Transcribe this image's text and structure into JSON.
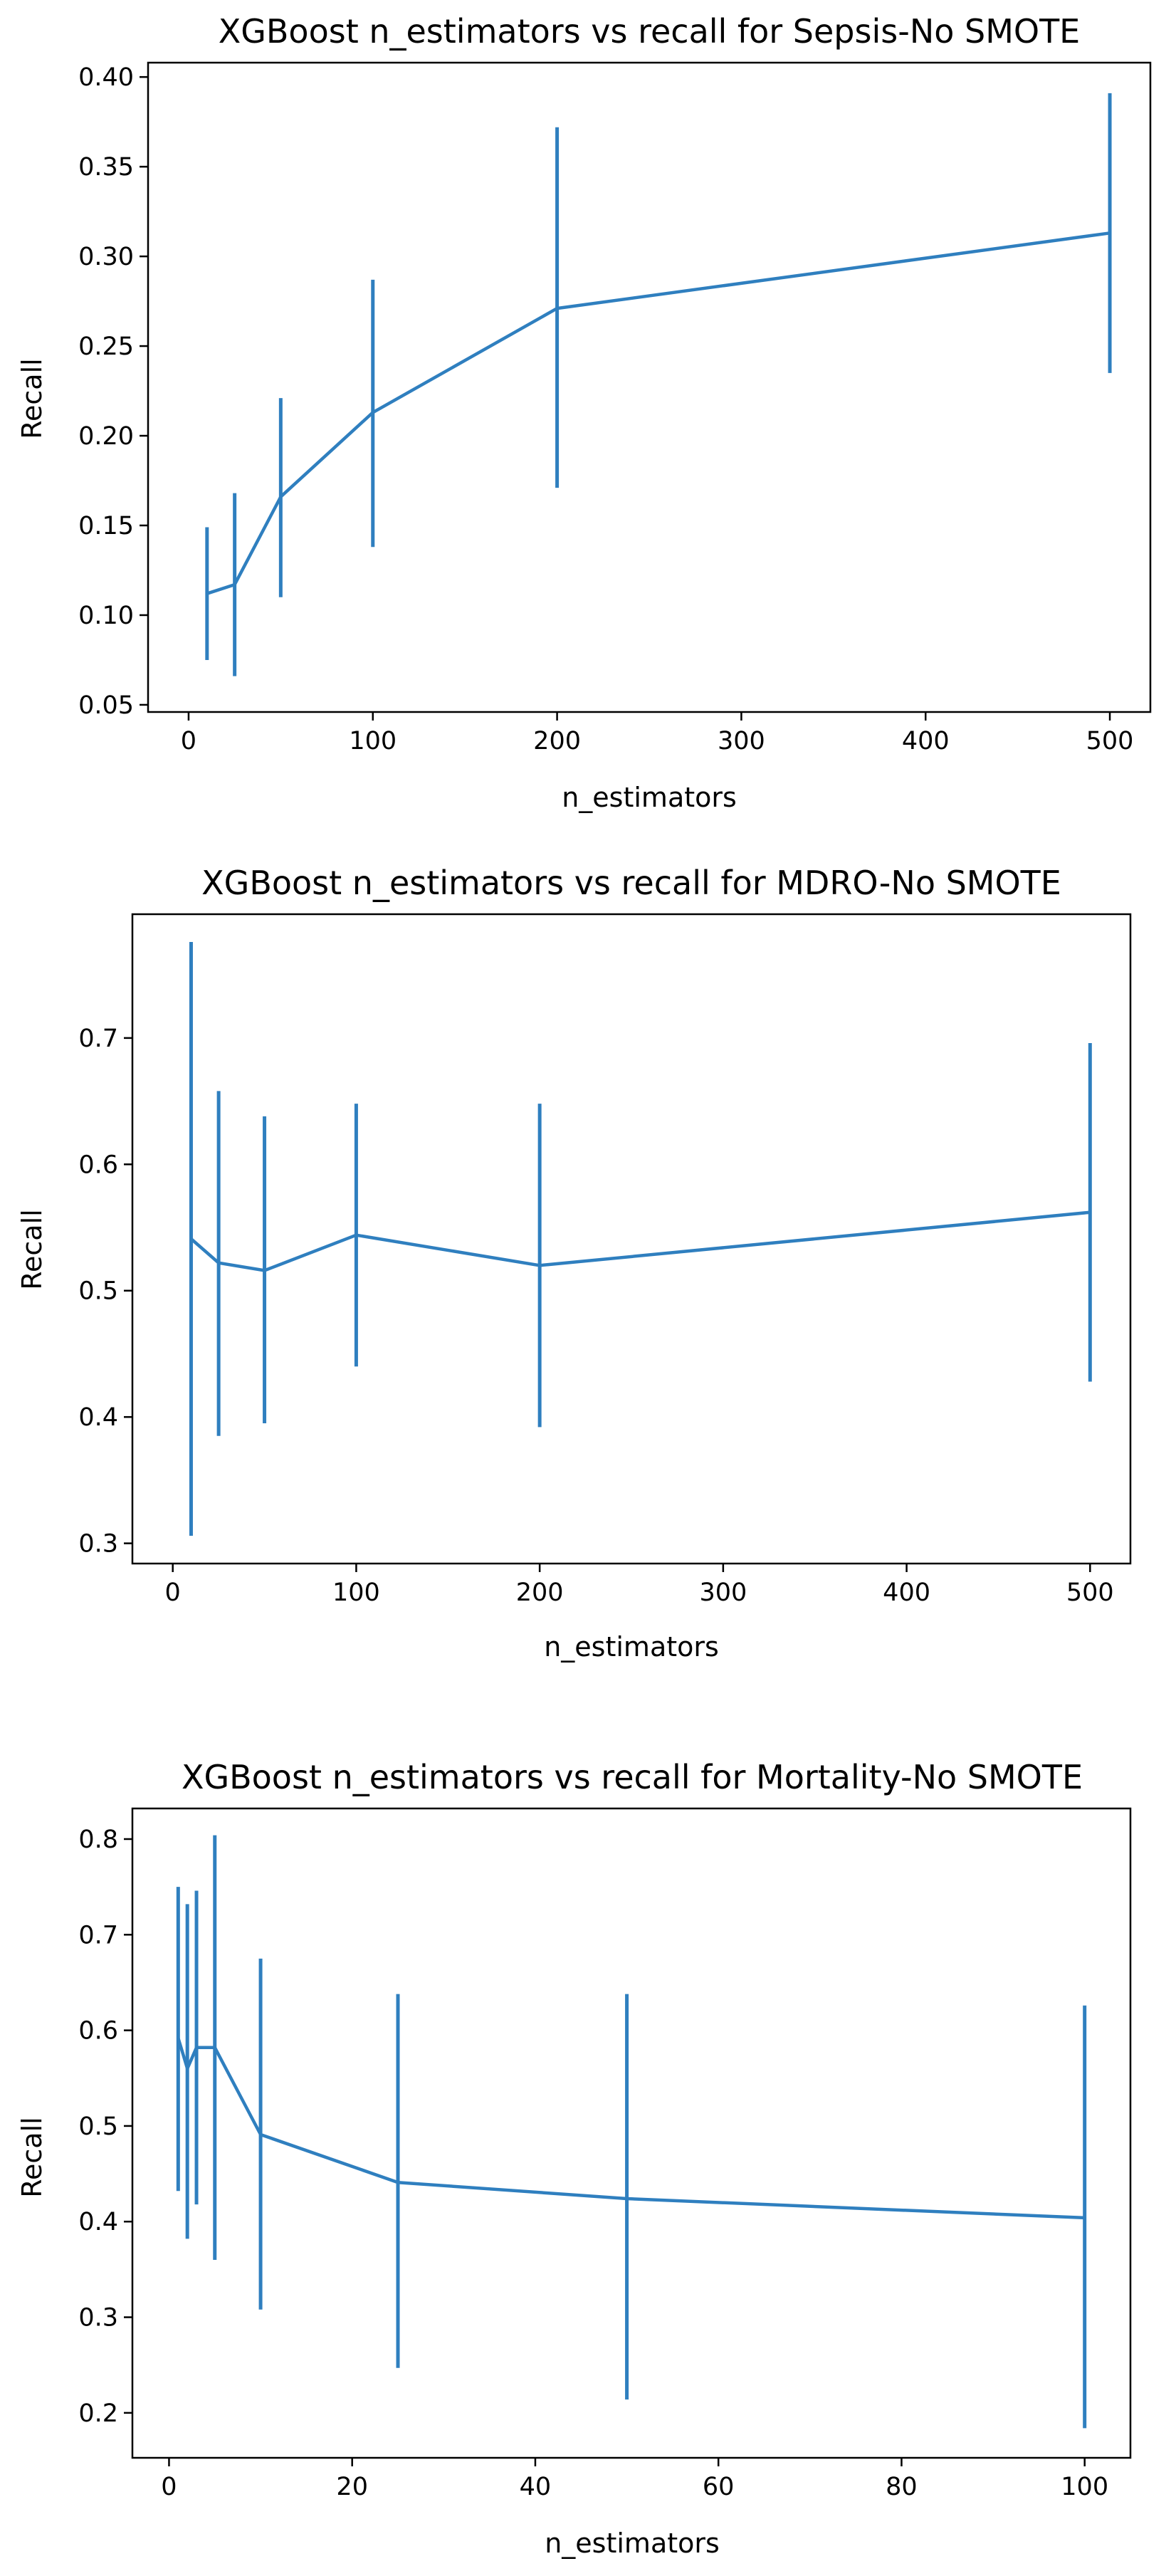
{
  "chart_data": [
    {
      "type": "line",
      "title": "XGBoost n_estimators vs recall for Sepsis-No SMOTE",
      "xlabel": "n_estimators",
      "ylabel": "Recall",
      "xlim": [
        -22,
        522
      ],
      "ylim": [
        0.046,
        0.408
      ],
      "xticks": [
        0,
        100,
        200,
        300,
        400,
        500
      ],
      "yticks": [
        0.05,
        0.1,
        0.15,
        0.2,
        0.25,
        0.3,
        0.35,
        0.4
      ],
      "ytick_decimals": 2,
      "grid": false,
      "series": [
        {
          "name": "recall",
          "color": "#2f7fbf",
          "x": [
            10,
            25,
            50,
            100,
            200,
            500
          ],
          "y": [
            0.112,
            0.117,
            0.166,
            0.213,
            0.271,
            0.313
          ],
          "err_low": [
            0.075,
            0.066,
            0.11,
            0.138,
            0.171,
            0.235
          ],
          "err_high": [
            0.149,
            0.168,
            0.221,
            0.287,
            0.372,
            0.391
          ]
        }
      ]
    },
    {
      "type": "line",
      "title": "XGBoost n_estimators vs recall for MDRO-No SMOTE",
      "xlabel": "n_estimators",
      "ylabel": "Recall",
      "xlim": [
        -22,
        522
      ],
      "ylim": [
        0.284,
        0.798
      ],
      "xticks": [
        0,
        100,
        200,
        300,
        400,
        500
      ],
      "yticks": [
        0.3,
        0.4,
        0.5,
        0.6,
        0.7
      ],
      "ytick_decimals": 1,
      "grid": false,
      "series": [
        {
          "name": "recall",
          "color": "#2f7fbf",
          "x": [
            10,
            25,
            50,
            100,
            200,
            500
          ],
          "y": [
            0.541,
            0.522,
            0.516,
            0.544,
            0.52,
            0.562
          ],
          "err_low": [
            0.306,
            0.385,
            0.395,
            0.44,
            0.392,
            0.428
          ],
          "err_high": [
            0.776,
            0.658,
            0.638,
            0.648,
            0.648,
            0.696
          ]
        }
      ]
    },
    {
      "type": "line",
      "title": "XGBoost n_estimators vs recall for Mortality-No SMOTE",
      "xlabel": "n_estimators",
      "ylabel": "Recall",
      "xlim": [
        -4,
        105
      ],
      "ylim": [
        0.153,
        0.832
      ],
      "xticks": [
        0,
        20,
        40,
        60,
        80,
        100
      ],
      "yticks": [
        0.2,
        0.3,
        0.4,
        0.5,
        0.6,
        0.7,
        0.8
      ],
      "ytick_decimals": 1,
      "grid": false,
      "series": [
        {
          "name": "recall",
          "color": "#2f7fbf",
          "x": [
            1,
            2,
            3,
            5,
            10,
            25,
            50,
            100
          ],
          "y": [
            0.592,
            0.56,
            0.582,
            0.582,
            0.491,
            0.441,
            0.424,
            0.404
          ],
          "err_low": [
            0.432,
            0.382,
            0.418,
            0.36,
            0.308,
            0.247,
            0.214,
            0.184
          ],
          "err_high": [
            0.75,
            0.732,
            0.746,
            0.804,
            0.675,
            0.638,
            0.638,
            0.626
          ]
        }
      ]
    }
  ]
}
